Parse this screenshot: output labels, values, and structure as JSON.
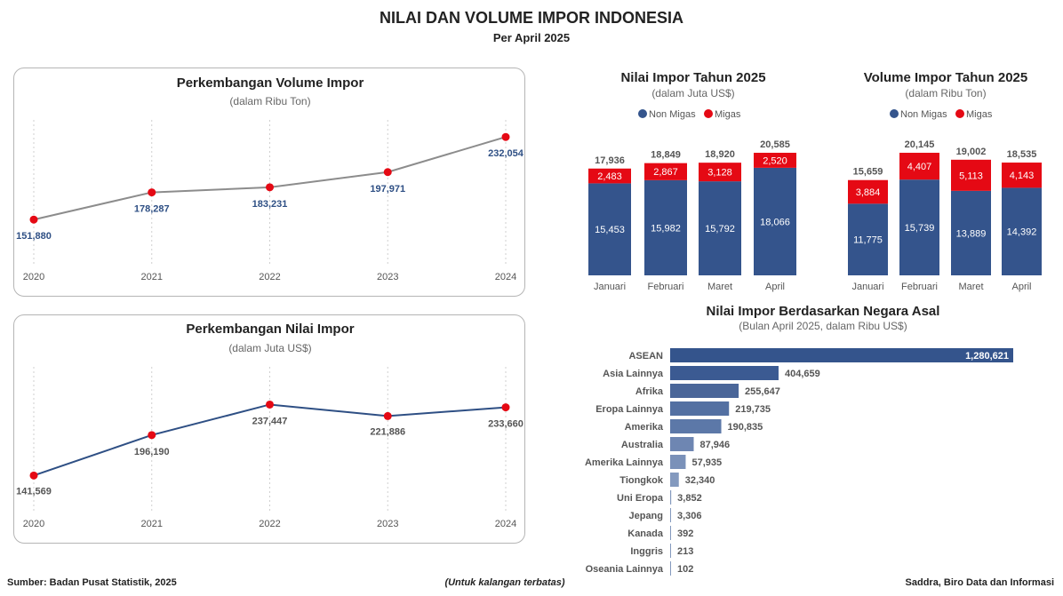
{
  "header": {
    "title": "NILAI DAN VOLUME IMPOR  INDONESIA",
    "subtitle": "Per April 2025"
  },
  "footer": {
    "source": "Sumber: Badan Pusat Statistik, 2025",
    "note": "(Untuk kalangan terbatas)",
    "credit": "Saddra, Biro Data dan Informasi"
  },
  "colors": {
    "navy": "#34548c",
    "red": "#e50914",
    "grey_line": "#8c8c8c",
    "value_blue": "#2e4f84"
  },
  "chart_data": [
    {
      "id": "volume_trend",
      "type": "line",
      "title": "Perkembangan Volume Impor",
      "subtitle": "(dalam Ribu Ton)",
      "x": [
        "2020",
        "2021",
        "2022",
        "2023",
        "2024"
      ],
      "values": [
        151880,
        178287,
        183231,
        197971,
        232054
      ],
      "labels": [
        "151,880",
        "178,287",
        "183,231",
        "197,971",
        "232,054"
      ],
      "ylim": [
        140000,
        240000
      ]
    },
    {
      "id": "nilai_trend",
      "type": "line",
      "title": "Perkembangan Nilai Impor",
      "subtitle": "(dalam Juta US$)",
      "x": [
        "2020",
        "2021",
        "2022",
        "2023",
        "2024"
      ],
      "values": [
        141569,
        196190,
        237447,
        221886,
        233660
      ],
      "labels": [
        "141,569",
        "196,190",
        "237,447",
        "221,886",
        "233,660"
      ],
      "ylim": [
        130000,
        250000
      ]
    },
    {
      "id": "nilai_2025",
      "type": "bar",
      "stacked": true,
      "title": "Nilai Impor Tahun 2025",
      "subtitle": "(dalam Juta US$)",
      "legend": [
        "Non Migas",
        "Migas"
      ],
      "categories": [
        "Januari",
        "Februari",
        "Maret",
        "April"
      ],
      "series": [
        {
          "name": "Non Migas",
          "values": [
            15453,
            15982,
            15792,
            18066
          ],
          "labels": [
            "15,453",
            "15,982",
            "15,792",
            "18,066"
          ]
        },
        {
          "name": "Migas",
          "values": [
            2483,
            2867,
            3128,
            2520
          ],
          "labels": [
            "2,483",
            "2,867",
            "3,128",
            "2,520"
          ]
        }
      ],
      "totals": [
        "17,936",
        "18,849",
        "18,920",
        "20,585"
      ],
      "total_values": [
        17936,
        18849,
        18920,
        20585
      ]
    },
    {
      "id": "volume_2025",
      "type": "bar",
      "stacked": true,
      "title": "Volume Impor Tahun 2025",
      "subtitle": "(dalam Ribu Ton)",
      "legend": [
        "Non Migas",
        "Migas"
      ],
      "categories": [
        "Januari",
        "Februari",
        "Maret",
        "April"
      ],
      "series": [
        {
          "name": "Non Migas",
          "values": [
            11775,
            15739,
            13889,
            14392
          ],
          "labels": [
            "11,775",
            "15,739",
            "13,889",
            "14,392"
          ]
        },
        {
          "name": "Migas",
          "values": [
            3884,
            4407,
            5113,
            4143
          ],
          "labels": [
            "3,884",
            "4,407",
            "5,113",
            "4,143"
          ]
        }
      ],
      "totals": [
        "15,659",
        "20,145",
        "19,002",
        "18,535"
      ],
      "total_values": [
        15659,
        20145,
        19002,
        18535
      ]
    },
    {
      "id": "negara_asal",
      "type": "bar",
      "orientation": "horizontal",
      "title": "Nilai Impor Berdasarkan Negara Asal",
      "subtitle": "(Bulan April 2025, dalam Ribu US$)",
      "categories": [
        "ASEAN",
        "Asia Lainnya",
        "Afrika",
        "Eropa Lainnya",
        "Amerika",
        "Australia",
        "Amerika Lainnya",
        "Tiongkok",
        "Uni Eropa",
        "Jepang",
        "Kanada",
        "Inggris",
        "Oseania Lainnya"
      ],
      "values": [
        1280621,
        404659,
        255647,
        219735,
        190835,
        87946,
        57935,
        32340,
        3852,
        3306,
        392,
        213,
        102
      ],
      "labels": [
        "1,280,621",
        "404,659",
        "255,647",
        "219,735",
        "190,835",
        "87,946",
        "57,935",
        "32,340",
        "3,852",
        "3,306",
        "392",
        "213",
        "102"
      ]
    }
  ]
}
